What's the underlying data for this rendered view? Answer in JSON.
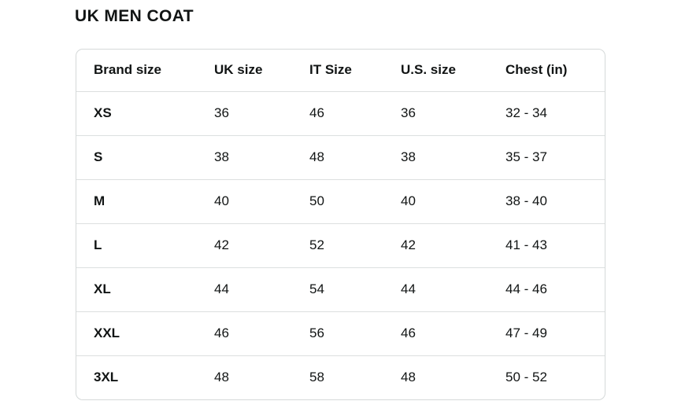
{
  "title": "UK MEN COAT",
  "table": {
    "columns": [
      "Brand size",
      "UK size",
      "IT Size",
      "U.S. size",
      "Chest (in)"
    ],
    "column_keys": [
      "brand-size",
      "uk-size",
      "it-size",
      "us-size",
      "chest-in"
    ],
    "rows": [
      [
        "XS",
        "36",
        "46",
        "36",
        "32 - 34"
      ],
      [
        "S",
        "38",
        "48",
        "38",
        "35 - 37"
      ],
      [
        "M",
        "40",
        "50",
        "40",
        "38 - 40"
      ],
      [
        "L",
        "42",
        "52",
        "42",
        "41 - 43"
      ],
      [
        "XL",
        "44",
        "54",
        "44",
        "44 - 46"
      ],
      [
        "XXL",
        "46",
        "56",
        "46",
        "47 - 49"
      ],
      [
        "3XL",
        "48",
        "58",
        "48",
        "50 - 52"
      ]
    ]
  },
  "colors": {
    "text": "#111414",
    "border": "#D5D9D9",
    "divider": "#DCDFDF",
    "background": "#FFFFFF"
  }
}
